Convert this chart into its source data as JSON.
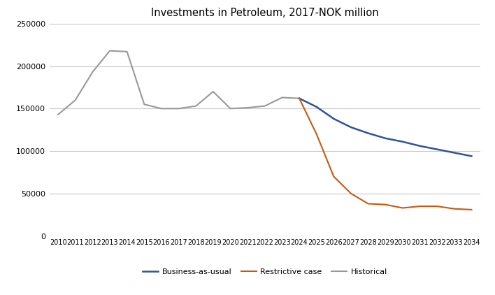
{
  "title": "Investments in Petroleum, 2017-NOK million",
  "historical_years": [
    2010,
    2011,
    2012,
    2013,
    2014,
    2015,
    2016,
    2017,
    2018,
    2019,
    2020,
    2021,
    2022,
    2023,
    2024
  ],
  "historical_values": [
    143000,
    160000,
    193000,
    218000,
    217000,
    155000,
    150000,
    150000,
    153000,
    170000,
    150000,
    151000,
    153000,
    163000,
    162000
  ],
  "bau_years": [
    2024,
    2025,
    2026,
    2027,
    2028,
    2029,
    2030,
    2031,
    2032,
    2033,
    2034
  ],
  "bau_values": [
    162000,
    152000,
    138000,
    128000,
    121000,
    115000,
    111000,
    106000,
    102000,
    98000,
    94000
  ],
  "restrictive_years": [
    2024,
    2025,
    2026,
    2027,
    2028,
    2029,
    2030,
    2031,
    2032,
    2033,
    2034
  ],
  "restrictive_values": [
    162000,
    120000,
    70000,
    50000,
    38000,
    37000,
    33000,
    35000,
    35000,
    32000,
    31000
  ],
  "historical_color": "#999999",
  "bau_color": "#2f5496",
  "restrictive_color": "#c55a11",
  "ylim": [
    0,
    250000
  ],
  "yticks": [
    0,
    50000,
    100000,
    150000,
    200000,
    250000
  ],
  "xlim_left": 2009.5,
  "xlim_right": 2034.5,
  "legend_labels": [
    "Business-as-usual",
    "Restrictive case",
    "Historical"
  ],
  "background_color": "#ffffff",
  "grid_color": "#c8c8c8"
}
